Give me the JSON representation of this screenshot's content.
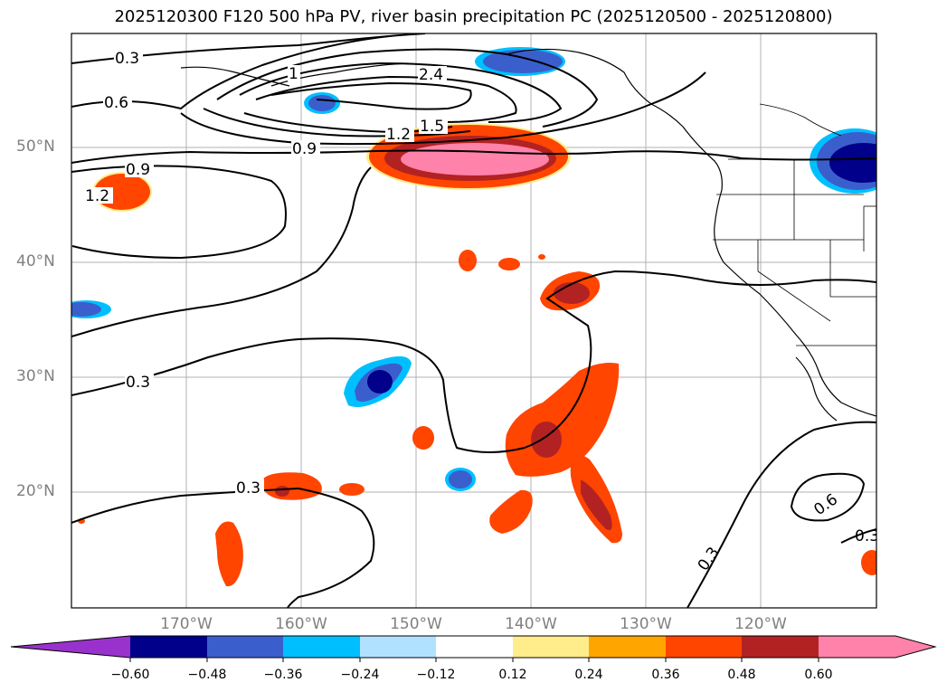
{
  "title": "2025120300 F120 500 hPa PV, river basin precipitation PC (2025120500 - 2025120800)",
  "lat_labels": [
    "50°N",
    "40°N",
    "30°N",
    "20°N"
  ],
  "lon_labels": [
    "170°W",
    "160°W",
    "150°W",
    "140°W",
    "130°W",
    "120°W"
  ],
  "contour_labels": [
    "0.3",
    "0.6",
    "1",
    "2.4",
    "1.2",
    "1.5",
    "0.9",
    "0.9",
    "1.2",
    "0.3",
    "0.3",
    "0.6",
    "0.3",
    "0.3"
  ],
  "colorbar": {
    "tick_labels": [
      "−0.60",
      "−0.48",
      "−0.36",
      "−0.24",
      "−0.12",
      "0.12",
      "0.24",
      "0.36",
      "0.48",
      "0.60"
    ],
    "colors": [
      "#9932cc",
      "#00008b",
      "#3a5fcd",
      "#00bfff",
      "#b0e2ff",
      "#ffffff",
      "#ffec8b",
      "#ffa500",
      "#ff4500",
      "#b22222",
      "#ff82ab"
    ]
  },
  "colors": {
    "pos_low": "#ffec8b",
    "pos_mid": "#ffa500",
    "pos": "#ff4500",
    "pos_high": "#b22222",
    "pos_max": "#ff82ab",
    "neg_low": "#b0e2ff",
    "neg": "#00bfff",
    "neg_mid": "#3a5fcd",
    "neg_high": "#00008b"
  }
}
